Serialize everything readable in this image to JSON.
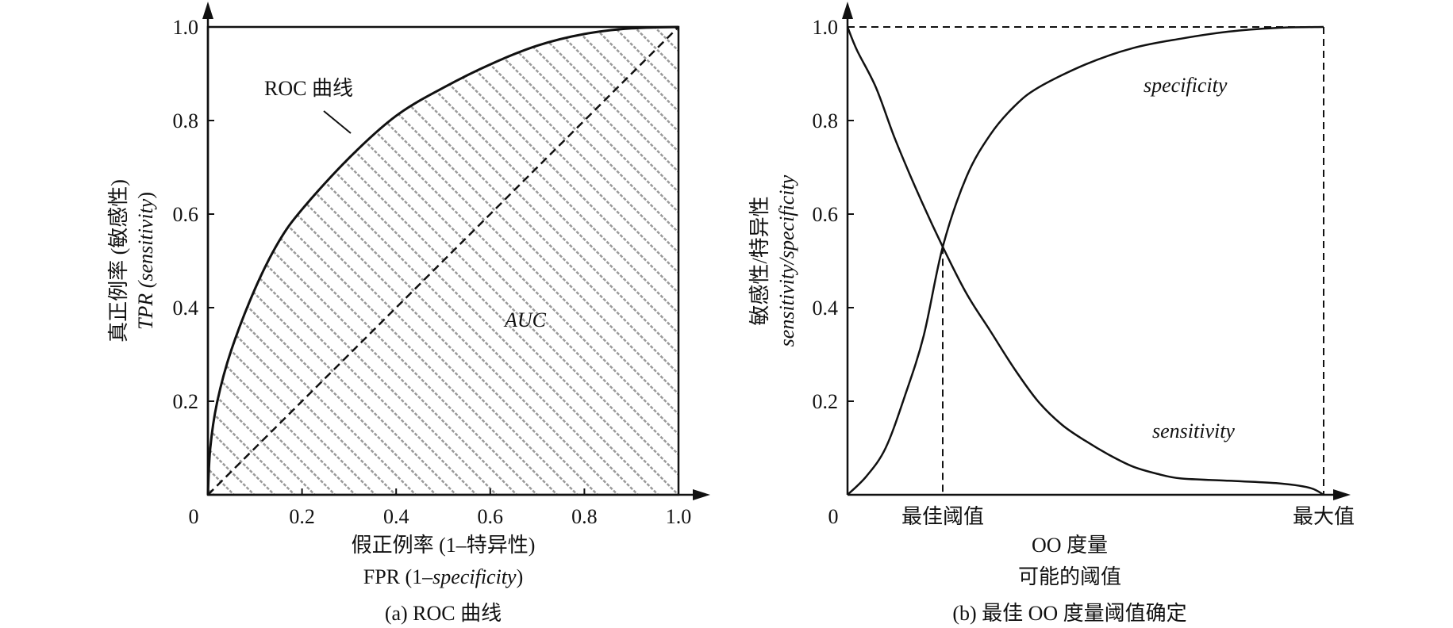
{
  "chart_data": [
    {
      "type": "area",
      "caption": "(a) ROC 曲线",
      "xlabel_lines": [
        "假正例率 (1–特异性)",
        "FPR (1–specificity)"
      ],
      "ylabel_lines": [
        "真正例率 (敏感性)",
        "TPR (sensitivity)"
      ],
      "xlim": [
        0,
        1.0
      ],
      "ylim": [
        0,
        1.0
      ],
      "x_ticks": [
        {
          "value": 0,
          "label": "0"
        },
        {
          "value": 0.2,
          "label": "0.2"
        },
        {
          "value": 0.4,
          "label": "0.4"
        },
        {
          "value": 0.6,
          "label": "0.6"
        },
        {
          "value": 0.8,
          "label": "0.8"
        },
        {
          "value": 1.0,
          "label": "1.0"
        }
      ],
      "y_ticks": [
        {
          "value": 0.2,
          "label": "0.2"
        },
        {
          "value": 0.4,
          "label": "0.4"
        },
        {
          "value": 0.6,
          "label": "0.6"
        },
        {
          "value": 0.8,
          "label": "0.8"
        },
        {
          "value": 1.0,
          "label": "1.0"
        }
      ],
      "series": [
        {
          "name": "ROC 曲线",
          "x": [
            0,
            0.005,
            0.02,
            0.05,
            0.1,
            0.15,
            0.2,
            0.3,
            0.4,
            0.5,
            0.6,
            0.7,
            0.8,
            0.9,
            1.0
          ],
          "y": [
            0,
            0.1,
            0.2,
            0.31,
            0.44,
            0.54,
            0.61,
            0.72,
            0.81,
            0.87,
            0.92,
            0.96,
            0.985,
            0.997,
            1.0
          ]
        },
        {
          "name": "diagonal",
          "x": [
            0,
            1.0
          ],
          "y": [
            0,
            1.0
          ]
        }
      ],
      "annotations": {
        "roc_label": "ROC 曲线",
        "auc_label": "AUC"
      }
    },
    {
      "type": "line",
      "caption": "(b) 最佳 OO 度量阈值确定",
      "xlabel_lines": [
        "OO 度量",
        "可能的阈值"
      ],
      "ylabel_lines": [
        "敏感性/特异性",
        "sensitivity/specificity"
      ],
      "ylim": [
        0,
        1.0
      ],
      "origin_label": "0",
      "x_ticks": [
        {
          "value": 0.2,
          "label": "最佳阈值"
        },
        {
          "value": 1.0,
          "label": "最大值"
        }
      ],
      "y_ticks": [
        {
          "value": 0.2,
          "label": "0.2"
        },
        {
          "value": 0.4,
          "label": "0.4"
        },
        {
          "value": 0.6,
          "label": "0.6"
        },
        {
          "value": 0.8,
          "label": "0.8"
        },
        {
          "value": 1.0,
          "label": "1.0"
        }
      ],
      "series": [
        {
          "name": "specificity",
          "x": [
            0,
            0.04,
            0.08,
            0.12,
            0.16,
            0.2,
            0.25,
            0.3,
            0.35,
            0.4,
            0.5,
            0.6,
            0.7,
            0.8,
            0.9,
            1.0
          ],
          "y": [
            0,
            0.04,
            0.1,
            0.21,
            0.34,
            0.53,
            0.68,
            0.77,
            0.83,
            0.87,
            0.92,
            0.955,
            0.975,
            0.99,
            0.998,
            1.0
          ]
        },
        {
          "name": "sensitivity",
          "x": [
            0,
            0.02,
            0.06,
            0.1,
            0.15,
            0.2,
            0.25,
            0.3,
            0.35,
            0.4,
            0.45,
            0.5,
            0.55,
            0.6,
            0.65,
            0.7,
            0.8,
            0.9,
            0.97,
            1.0
          ],
          "y": [
            1.0,
            0.95,
            0.87,
            0.76,
            0.64,
            0.53,
            0.43,
            0.35,
            0.27,
            0.2,
            0.15,
            0.115,
            0.085,
            0.06,
            0.045,
            0.035,
            0.03,
            0.025,
            0.015,
            0.0
          ]
        }
      ],
      "optimal_threshold": {
        "x": 0.2,
        "y": 0.53
      },
      "max_value": {
        "x": 1.0,
        "y": 1.0
      }
    }
  ]
}
